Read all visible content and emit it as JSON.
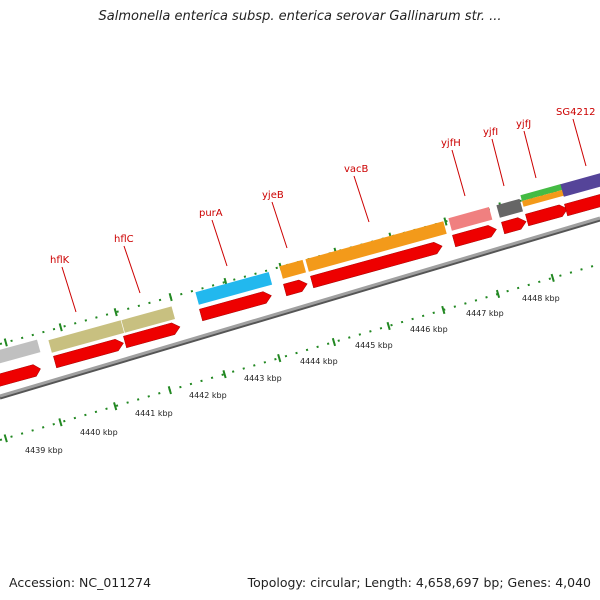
{
  "title": "Salmonella enterica subsp. enterica serovar Gallinarum str. ...",
  "footer": {
    "accession": "Accession: NC_011274",
    "topology": "Topology: circular; Length: 4,658,697 bp; Genes: 4,040"
  },
  "colors": {
    "backbone": "#8a8a8a",
    "cds": "#ee0000",
    "label": "#cc0000",
    "tick": "#228822"
  },
  "genes": [
    {
      "name": "hflK",
      "color": "#c8c080"
    },
    {
      "name": "hflC",
      "color": "#c8c080"
    },
    {
      "name": "purA",
      "color": "#22b8ee"
    },
    {
      "name": "yjeB",
      "color": "#f39a1a"
    },
    {
      "name": "vacB",
      "color": "#f39a1a"
    },
    {
      "name": "yjfH",
      "color": "#f08080"
    },
    {
      "name": "yjfI",
      "color": "#666666"
    },
    {
      "name": "yjfJ",
      "color": "#44bb44"
    },
    {
      "name": "SG4212",
      "color": "#554499"
    }
  ],
  "kbp_ticks": [
    "4439 kbp",
    "4440 kbp",
    "4441 kbp",
    "4442 kbp",
    "4443 kbp",
    "4444 kbp",
    "4445 kbp",
    "4446 kbp",
    "4447 kbp",
    "4448 kbp"
  ]
}
